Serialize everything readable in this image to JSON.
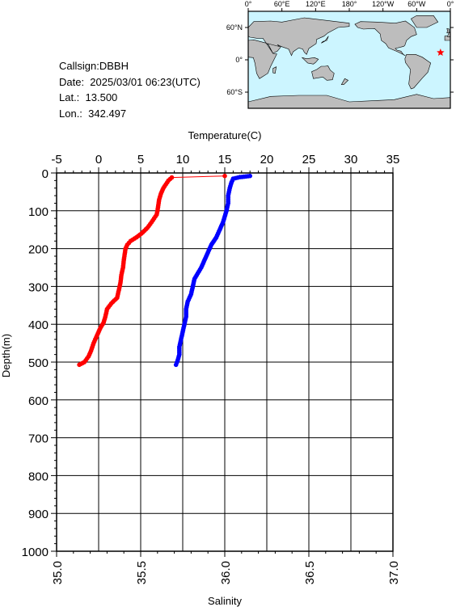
{
  "info": {
    "callsign": "Callsign:DBBH",
    "date": "Date:  2025/03/01 06:23(UTC)",
    "lat": "Lat.:  13.500",
    "lon": "Lon.:  342.497"
  },
  "map": {
    "top_ticks": [
      "0°",
      "60°E",
      "120°E",
      "180°",
      "120°W",
      "60°W",
      "0°"
    ],
    "lat_ticks": [
      "60°N",
      "0°",
      "60°S"
    ],
    "ocean_color": "#ccf5ff",
    "land_color": "#bdbdbd",
    "marker_color": "#ff0000",
    "marker_symbol": "star",
    "station_lon": 342.497,
    "station_lat": 13.5
  },
  "chart_data": {
    "type": "line",
    "ylabel": "Depth(m)",
    "ylim": [
      1000,
      0
    ],
    "yticks": [
      "0",
      "100",
      "200",
      "300",
      "400",
      "500",
      "600",
      "700",
      "800",
      "900",
      "1000"
    ],
    "top_axis": {
      "label": "Temperature(C)",
      "lim": [
        -5,
        35
      ],
      "ticks": [
        "-5",
        "0",
        "5",
        "10",
        "15",
        "20",
        "25",
        "30",
        "35"
      ]
    },
    "bottom_axis": {
      "label": "Salinity",
      "lim": [
        35.0,
        37.0
      ],
      "ticks": [
        "35.0",
        "35.5",
        "36.0",
        "36.5",
        "37.0"
      ]
    },
    "grid": true,
    "series": [
      {
        "axis": "top",
        "color": "#ff0000",
        "points": [
          [
            15.0,
            8
          ],
          [
            8.7,
            12
          ],
          [
            8.3,
            20
          ],
          [
            8.0,
            30
          ],
          [
            7.7,
            40
          ],
          [
            7.4,
            55
          ],
          [
            7.2,
            70
          ],
          [
            7.1,
            85
          ],
          [
            7.0,
            100
          ],
          [
            6.9,
            110
          ],
          [
            6.6,
            120
          ],
          [
            6.3,
            130
          ],
          [
            5.8,
            145
          ],
          [
            5.1,
            160
          ],
          [
            4.5,
            170
          ],
          [
            3.8,
            180
          ],
          [
            3.4,
            190
          ],
          [
            3.2,
            200
          ],
          [
            3.1,
            215
          ],
          [
            3.0,
            230
          ],
          [
            2.9,
            250
          ],
          [
            2.7,
            270
          ],
          [
            2.6,
            290
          ],
          [
            2.4,
            310
          ],
          [
            2.2,
            330
          ],
          [
            1.5,
            345
          ],
          [
            1.0,
            360
          ],
          [
            0.8,
            380
          ],
          [
            0.6,
            395
          ],
          [
            0.2,
            410
          ],
          [
            -0.2,
            430
          ],
          [
            -0.6,
            450
          ],
          [
            -0.9,
            470
          ],
          [
            -1.2,
            485
          ],
          [
            -1.7,
            500
          ],
          [
            -2.3,
            507
          ]
        ]
      },
      {
        "axis": "bottom",
        "color": "#0000ff",
        "points": [
          [
            36.15,
            8
          ],
          [
            36.09,
            11
          ],
          [
            36.05,
            15
          ],
          [
            36.04,
            25
          ],
          [
            36.03,
            40
          ],
          [
            36.02,
            60
          ],
          [
            36.02,
            80
          ],
          [
            36.01,
            100
          ],
          [
            36.0,
            115
          ],
          [
            35.99,
            130
          ],
          [
            35.97,
            150
          ],
          [
            35.95,
            170
          ],
          [
            35.92,
            190
          ],
          [
            35.9,
            210
          ],
          [
            35.88,
            230
          ],
          [
            35.86,
            250
          ],
          [
            35.84,
            265
          ],
          [
            35.82,
            280
          ],
          [
            35.81,
            300
          ],
          [
            35.8,
            320
          ],
          [
            35.78,
            340
          ],
          [
            35.77,
            360
          ],
          [
            35.77,
            380
          ],
          [
            35.76,
            400
          ],
          [
            35.75,
            420
          ],
          [
            35.74,
            440
          ],
          [
            35.73,
            460
          ],
          [
            35.73,
            480
          ],
          [
            35.72,
            495
          ],
          [
            35.71,
            507
          ]
        ]
      }
    ]
  }
}
